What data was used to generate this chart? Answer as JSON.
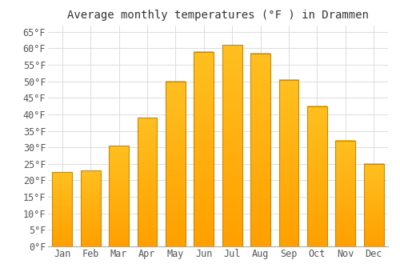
{
  "title": "Average monthly temperatures (°F ) in Drammen",
  "months": [
    "Jan",
    "Feb",
    "Mar",
    "Apr",
    "May",
    "Jun",
    "Jul",
    "Aug",
    "Sep",
    "Oct",
    "Nov",
    "Dec"
  ],
  "values": [
    22.5,
    23.0,
    30.5,
    39.0,
    50.0,
    59.0,
    61.0,
    58.5,
    50.5,
    42.5,
    32.0,
    25.0
  ],
  "bar_color_top": "#FFC020",
  "bar_color_bottom": "#FFA000",
  "bar_edge_color": "#CC8800",
  "background_color": "#FFFFFF",
  "grid_color": "#DDDDDD",
  "text_color": "#555555",
  "ylim": [
    0,
    67
  ],
  "yticks": [
    0,
    5,
    10,
    15,
    20,
    25,
    30,
    35,
    40,
    45,
    50,
    55,
    60,
    65
  ],
  "title_fontsize": 10,
  "tick_fontsize": 8.5
}
